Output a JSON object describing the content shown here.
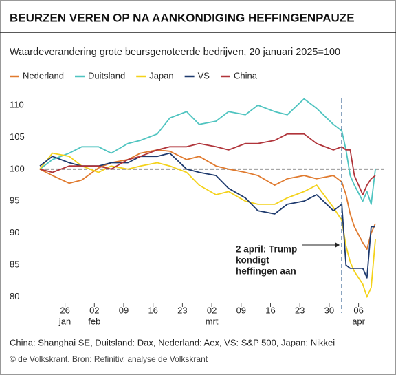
{
  "chart_data": {
    "type": "line",
    "title": "BEURZEN VEREN OP NA AANKONDIGING HEFFINGENPAUZE",
    "subtitle": "Waardeverandering grote beursgenoteerde bedrijven, 20 januari 2025=100",
    "x": [
      0,
      3,
      7,
      10,
      14,
      17,
      21,
      24,
      28,
      31,
      35,
      38,
      42,
      45,
      49,
      52,
      56,
      59,
      63,
      66,
      70,
      72,
      73,
      74,
      75,
      77,
      78,
      79,
      80
    ],
    "xlim": [
      0,
      80
    ],
    "xticks": [
      {
        "value": 6,
        "label": "26",
        "sublabel": "jan"
      },
      {
        "value": 13,
        "label": "02",
        "sublabel": "feb"
      },
      {
        "value": 20,
        "label": "09"
      },
      {
        "value": 27,
        "label": "16"
      },
      {
        "value": 34,
        "label": "23"
      },
      {
        "value": 41,
        "label": "02",
        "sublabel": "mrt"
      },
      {
        "value": 48,
        "label": "09"
      },
      {
        "value": 55,
        "label": "16"
      },
      {
        "value": 62,
        "label": "23"
      },
      {
        "value": 69,
        "label": "30"
      },
      {
        "value": 76,
        "label": "06",
        "sublabel": "apr"
      }
    ],
    "ylim": [
      79,
      113
    ],
    "yticks": [
      80,
      85,
      90,
      95,
      100,
      105,
      110
    ],
    "hline": 100,
    "vline": 72,
    "annotation": [
      "2 april: Trump",
      "kondigt",
      "heffingen aan"
    ],
    "series": [
      {
        "name": "Nederland",
        "color": "#e07a2e",
        "values": [
          100,
          99,
          97.8,
          98.3,
          100.2,
          101,
          101.5,
          102.5,
          103,
          102.8,
          101.5,
          102,
          100.5,
          100,
          99.5,
          99,
          97.5,
          98.5,
          99,
          98.5,
          99,
          98,
          96,
          93,
          91,
          88.5,
          87.5,
          90,
          91.5
        ]
      },
      {
        "name": "Duitsland",
        "color": "#4fc4c0",
        "values": [
          100,
          101.5,
          102.5,
          103.5,
          103.5,
          102.5,
          104,
          104.5,
          105.5,
          108,
          109,
          107,
          107.5,
          109,
          108.5,
          110,
          109,
          108.5,
          111,
          109.5,
          107,
          106,
          103,
          99,
          97.5,
          95,
          96.5,
          94.5,
          100
        ]
      },
      {
        "name": "Japan",
        "color": "#f4d21a",
        "values": [
          100,
          102.5,
          102,
          100.5,
          99.5,
          100.5,
          100,
          100.5,
          101,
          100.5,
          99.5,
          97.5,
          96,
          96.5,
          95,
          94.5,
          94.5,
          95.5,
          96.5,
          97.5,
          94,
          92,
          88,
          85.5,
          84,
          82,
          80,
          81.5,
          89
        ]
      },
      {
        "name": "VS",
        "color": "#1e3a6e",
        "values": [
          100.5,
          102,
          101,
          100.5,
          100.5,
          101,
          101,
          102,
          102,
          102.5,
          100,
          99.5,
          99,
          97,
          95.5,
          93.5,
          93,
          94.5,
          95,
          96,
          93.5,
          94.5,
          85,
          84.5,
          84.5,
          84.5,
          83,
          91,
          91
        ]
      },
      {
        "name": "China",
        "color": "#b0343a",
        "values": [
          100,
          99.5,
          100.5,
          100.5,
          100.5,
          100,
          101.5,
          102,
          103,
          103.5,
          103.5,
          104,
          103.5,
          103,
          104,
          104,
          104.5,
          105.5,
          105.5,
          104,
          103,
          103.5,
          103,
          103,
          99,
          96,
          97.5,
          98.5,
          99
        ]
      }
    ],
    "footnote": "China: Shanghai SE, Duitsland: Dax, Nederland: Aex,  VS: S&P 500, Japan: Nikkei",
    "source": "© de Volkskrant. Bron: Refinitiv, analyse de Volkskrant"
  }
}
